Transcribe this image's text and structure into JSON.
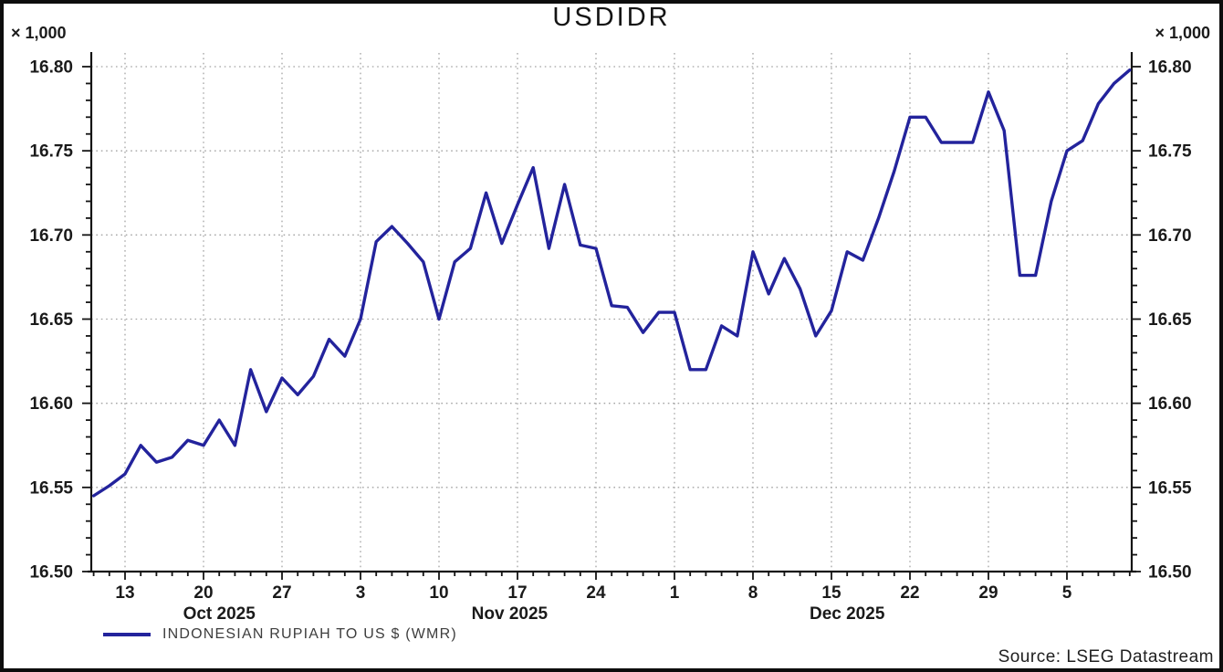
{
  "title": "USDIDR",
  "scale_note": "× 1,000",
  "source": "Source: LSEG Datastream",
  "legend": {
    "label": "INDONESIAN RUPIAH TO US $ (WMR)",
    "color": "#23239c"
  },
  "colors": {
    "line": "#23239c",
    "axis": "#141414",
    "grid": "#a3a3a3",
    "label": "#1a1a1a",
    "background": "#ffffff"
  },
  "chart_data": {
    "type": "line",
    "title": "USDIDR",
    "xlabel": "",
    "ylabel": "",
    "unit_multiplier": 1000,
    "ylim": [
      16.5,
      16.8
    ],
    "ytick_major": 0.05,
    "ytick_minor": 0.01,
    "ytick_labels": [
      "16.50",
      "16.55",
      "16.60",
      "16.65",
      "16.70",
      "16.75",
      "16.80"
    ],
    "grid": "dotted",
    "legend_position": "bottom-left",
    "x_axis": {
      "tick_labels": [
        "13",
        "20",
        "27",
        "3",
        "10",
        "17",
        "24",
        "1",
        "8",
        "15",
        "22",
        "29",
        "5"
      ],
      "month_labels": [
        {
          "label": "Oct 2025",
          "month": "2025-10"
        },
        {
          "label": "Nov 2025",
          "month": "2025-11"
        },
        {
          "label": "Dec 2025",
          "month": "2025-12"
        }
      ]
    },
    "series": [
      {
        "name": "INDONESIAN RUPIAH TO US $ (WMR)",
        "color": "#23239c",
        "points": [
          {
            "date": "2025-10-09",
            "value": 16.545
          },
          {
            "date": "2025-10-10",
            "value": 16.551
          },
          {
            "date": "2025-10-13",
            "value": 16.558
          },
          {
            "date": "2025-10-14",
            "value": 16.575
          },
          {
            "date": "2025-10-15",
            "value": 16.565
          },
          {
            "date": "2025-10-16",
            "value": 16.568
          },
          {
            "date": "2025-10-17",
            "value": 16.578
          },
          {
            "date": "2025-10-20",
            "value": 16.575
          },
          {
            "date": "2025-10-21",
            "value": 16.59
          },
          {
            "date": "2025-10-22",
            "value": 16.575
          },
          {
            "date": "2025-10-23",
            "value": 16.62
          },
          {
            "date": "2025-10-24",
            "value": 16.595
          },
          {
            "date": "2025-10-27",
            "value": 16.615
          },
          {
            "date": "2025-10-28",
            "value": 16.605
          },
          {
            "date": "2025-10-29",
            "value": 16.616
          },
          {
            "date": "2025-10-30",
            "value": 16.638
          },
          {
            "date": "2025-10-31",
            "value": 16.628
          },
          {
            "date": "2025-11-03",
            "value": 16.65
          },
          {
            "date": "2025-11-04",
            "value": 16.696
          },
          {
            "date": "2025-11-05",
            "value": 16.705
          },
          {
            "date": "2025-11-06",
            "value": 16.695
          },
          {
            "date": "2025-11-07",
            "value": 16.684
          },
          {
            "date": "2025-11-10",
            "value": 16.65
          },
          {
            "date": "2025-11-11",
            "value": 16.684
          },
          {
            "date": "2025-11-12",
            "value": 16.692
          },
          {
            "date": "2025-11-13",
            "value": 16.725
          },
          {
            "date": "2025-11-14",
            "value": 16.695
          },
          {
            "date": "2025-11-17",
            "value": 16.718
          },
          {
            "date": "2025-11-18",
            "value": 16.74
          },
          {
            "date": "2025-11-19",
            "value": 16.692
          },
          {
            "date": "2025-11-20",
            "value": 16.73
          },
          {
            "date": "2025-11-21",
            "value": 16.694
          },
          {
            "date": "2025-11-24",
            "value": 16.692
          },
          {
            "date": "2025-11-25",
            "value": 16.658
          },
          {
            "date": "2025-11-26",
            "value": 16.657
          },
          {
            "date": "2025-11-27",
            "value": 16.642
          },
          {
            "date": "2025-11-28",
            "value": 16.654
          },
          {
            "date": "2025-12-01",
            "value": 16.654
          },
          {
            "date": "2025-12-02",
            "value": 16.62
          },
          {
            "date": "2025-12-03",
            "value": 16.62
          },
          {
            "date": "2025-12-04",
            "value": 16.646
          },
          {
            "date": "2025-12-05",
            "value": 16.64
          },
          {
            "date": "2025-12-08",
            "value": 16.69
          },
          {
            "date": "2025-12-09",
            "value": 16.665
          },
          {
            "date": "2025-12-10",
            "value": 16.686
          },
          {
            "date": "2025-12-11",
            "value": 16.668
          },
          {
            "date": "2025-12-12",
            "value": 16.64
          },
          {
            "date": "2025-12-15",
            "value": 16.655
          },
          {
            "date": "2025-12-16",
            "value": 16.69
          },
          {
            "date": "2025-12-17",
            "value": 16.685
          },
          {
            "date": "2025-12-18",
            "value": 16.71
          },
          {
            "date": "2025-12-19",
            "value": 16.738
          },
          {
            "date": "2025-12-22",
            "value": 16.77
          },
          {
            "date": "2025-12-23",
            "value": 16.77
          },
          {
            "date": "2025-12-24",
            "value": 16.755
          },
          {
            "date": "2025-12-25",
            "value": 16.755
          },
          {
            "date": "2025-12-26",
            "value": 16.755
          },
          {
            "date": "2025-12-29",
            "value": 16.785
          },
          {
            "date": "2025-12-30",
            "value": 16.762
          },
          {
            "date": "2025-12-31",
            "value": 16.676
          },
          {
            "date": "2026-01-01",
            "value": 16.676
          },
          {
            "date": "2026-01-02",
            "value": 16.72
          },
          {
            "date": "2026-01-05",
            "value": 16.75
          },
          {
            "date": "2026-01-06",
            "value": 16.756
          },
          {
            "date": "2026-01-07",
            "value": 16.778
          },
          {
            "date": "2026-01-08",
            "value": 16.79
          },
          {
            "date": "2026-01-09",
            "value": 16.798
          }
        ]
      }
    ]
  }
}
